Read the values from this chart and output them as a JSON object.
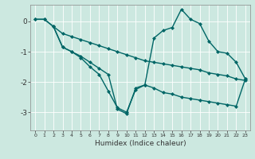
{
  "xlabel": "Humidex (Indice chaleur)",
  "ylabel": "",
  "bg_color": "#cce8e0",
  "grid_color": "#ffffff",
  "line_color": "#006666",
  "xlim": [
    -0.5,
    23.5
  ],
  "ylim": [
    -3.6,
    0.55
  ],
  "xticks": [
    0,
    1,
    2,
    3,
    4,
    5,
    6,
    7,
    8,
    9,
    10,
    11,
    12,
    13,
    14,
    15,
    16,
    17,
    18,
    19,
    20,
    21,
    22,
    23
  ],
  "yticks": [
    0,
    -1,
    -2,
    -3
  ],
  "line1_x": [
    0,
    1,
    2,
    3,
    4,
    5,
    6,
    7,
    8,
    9,
    10,
    11,
    12,
    13,
    14,
    15,
    16,
    17,
    18,
    19,
    20,
    21,
    22,
    23
  ],
  "line1_y": [
    0.07,
    0.07,
    -0.17,
    -0.4,
    -0.5,
    -0.6,
    -0.7,
    -0.8,
    -0.9,
    -1.0,
    -1.1,
    -1.2,
    -1.3,
    -1.35,
    -1.4,
    -1.45,
    -1.5,
    -1.55,
    -1.6,
    -1.7,
    -1.75,
    -1.8,
    -1.9,
    -1.95
  ],
  "line2_x": [
    2,
    3,
    4,
    5,
    6,
    7,
    8,
    9,
    10,
    11,
    12,
    13,
    14,
    15,
    16,
    17,
    18,
    19,
    20,
    21,
    22,
    23
  ],
  "line2_y": [
    -0.17,
    -0.85,
    -1.0,
    -1.2,
    -1.5,
    -1.75,
    -2.3,
    -2.85,
    -3.0,
    -2.25,
    -2.1,
    -2.2,
    -2.35,
    -2.4,
    -2.5,
    -2.55,
    -2.6,
    -2.65,
    -2.7,
    -2.75,
    -2.8,
    -1.9
  ],
  "line3_x": [
    0,
    1,
    2,
    3,
    4,
    5,
    6,
    7,
    8,
    9,
    10,
    11,
    12,
    13,
    14,
    15,
    16,
    17,
    18,
    19,
    20,
    21,
    22,
    23
  ],
  "line3_y": [
    0.07,
    0.07,
    -0.17,
    -0.85,
    -1.0,
    -1.15,
    -1.35,
    -1.55,
    -1.75,
    -2.9,
    -3.05,
    -2.2,
    -2.1,
    -0.55,
    -0.3,
    -0.2,
    0.4,
    0.07,
    -0.07,
    -0.65,
    -1.0,
    -1.05,
    -1.35,
    -1.9
  ]
}
